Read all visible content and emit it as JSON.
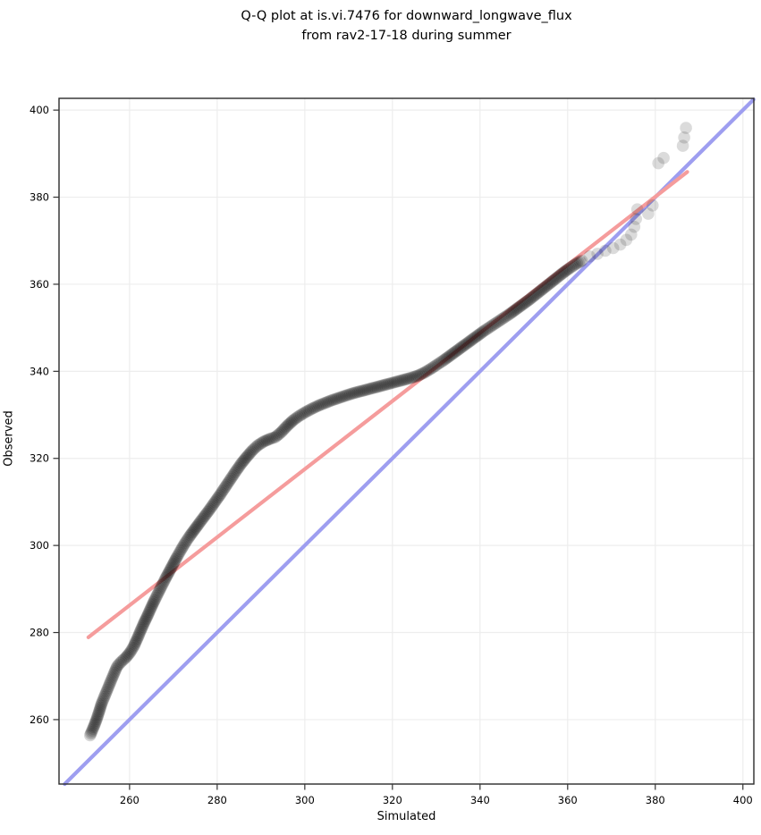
{
  "title": {
    "line1": "Q-Q plot at is.vi.7476 for downward_longwave_flux",
    "line2": "from rav2-17-18 during summer"
  },
  "chart_data": {
    "type": "scatter",
    "title": "Q-Q plot at is.vi.7476 for downward_longwave_flux from rav2-17-18 during summer",
    "xlabel": "Simulated",
    "ylabel": "Observed",
    "xlim": [
      243.9,
      402.5
    ],
    "ylim": [
      245.2,
      402.7
    ],
    "xticks": [
      260,
      280,
      300,
      320,
      340,
      360,
      380,
      400
    ],
    "yticks": [
      260,
      280,
      300,
      320,
      340,
      360,
      380,
      400
    ],
    "grid": true,
    "grid_color": "#ededed",
    "background_color": "#ffffff",
    "border_color": "#2b2b2b",
    "legend": "none",
    "lines": [
      {
        "name": "identity-line",
        "color": "#9e9ef0",
        "x1": 245.2,
        "y1": 245.2,
        "x2": 402.45,
        "y2": 402.45
      },
      {
        "name": "fit-line",
        "color": "#f59c9c",
        "x1": 250.6,
        "y1": 278.9,
        "x2": 387.3,
        "y2": 385.8
      }
    ],
    "points_color": "#000000",
    "qq_curve_points": [
      [
        251.0,
        256.4
      ],
      [
        251.8,
        258.3
      ],
      [
        252.5,
        260.1
      ],
      [
        253.1,
        262.0
      ],
      [
        253.7,
        263.9
      ],
      [
        254.4,
        265.6
      ],
      [
        255.1,
        267.3
      ],
      [
        255.8,
        269.0
      ],
      [
        256.5,
        270.7
      ],
      [
        257.2,
        272.3
      ],
      [
        258.1,
        273.3
      ],
      [
        259.1,
        274.2
      ],
      [
        260.1,
        275.4
      ],
      [
        261.0,
        276.9
      ],
      [
        261.8,
        278.7
      ],
      [
        262.6,
        280.6
      ],
      [
        263.4,
        282.4
      ],
      [
        264.2,
        284.1
      ],
      [
        265.0,
        285.9
      ],
      [
        265.8,
        287.6
      ],
      [
        266.6,
        289.2
      ],
      [
        267.4,
        290.8
      ],
      [
        268.2,
        292.4
      ],
      [
        269.1,
        294.1
      ],
      [
        270.0,
        295.8
      ],
      [
        270.9,
        297.5
      ],
      [
        271.8,
        299.1
      ],
      [
        272.7,
        300.6
      ],
      [
        273.7,
        302.1
      ],
      [
        274.8,
        303.6
      ],
      [
        275.9,
        305.1
      ],
      [
        277.1,
        306.7
      ],
      [
        278.3,
        308.3
      ],
      [
        279.5,
        310.0
      ],
      [
        280.7,
        311.7
      ],
      [
        281.9,
        313.5
      ],
      [
        283.1,
        315.3
      ],
      [
        284.3,
        317.1
      ],
      [
        285.5,
        318.8
      ],
      [
        286.7,
        320.3
      ],
      [
        288.0,
        321.8
      ],
      [
        289.3,
        323.0
      ],
      [
        290.7,
        323.9
      ],
      [
        292.1,
        324.5
      ],
      [
        293.3,
        324.9
      ],
      [
        294.6,
        326.0
      ],
      [
        296.0,
        327.5
      ],
      [
        297.4,
        328.8
      ],
      [
        298.8,
        329.8
      ],
      [
        300.3,
        330.7
      ],
      [
        301.8,
        331.5
      ],
      [
        303.3,
        332.2
      ],
      [
        304.8,
        332.8
      ],
      [
        306.3,
        333.4
      ],
      [
        307.8,
        333.9
      ],
      [
        309.3,
        334.4
      ],
      [
        310.8,
        334.9
      ],
      [
        312.3,
        335.3
      ],
      [
        313.8,
        335.7
      ],
      [
        315.3,
        336.1
      ],
      [
        316.8,
        336.5
      ],
      [
        318.3,
        336.9
      ],
      [
        319.8,
        337.3
      ],
      [
        321.3,
        337.7
      ],
      [
        322.8,
        338.1
      ],
      [
        324.3,
        338.5
      ],
      [
        325.8,
        339.0
      ],
      [
        327.3,
        339.7
      ],
      [
        328.8,
        340.6
      ],
      [
        330.3,
        341.6
      ],
      [
        331.8,
        342.6
      ],
      [
        333.3,
        343.7
      ],
      [
        334.8,
        344.8
      ],
      [
        336.3,
        345.9
      ],
      [
        337.8,
        347.0
      ],
      [
        339.3,
        348.1
      ],
      [
        340.8,
        349.2
      ],
      [
        342.3,
        350.2
      ],
      [
        343.8,
        351.2
      ],
      [
        345.3,
        352.2
      ],
      [
        346.8,
        353.2
      ],
      [
        348.3,
        354.3
      ],
      [
        349.8,
        355.4
      ],
      [
        351.3,
        356.5
      ],
      [
        352.8,
        357.7
      ],
      [
        354.3,
        358.9
      ],
      [
        355.8,
        360.1
      ],
      [
        357.3,
        361.3
      ],
      [
        358.8,
        362.5
      ],
      [
        360.3,
        363.6
      ],
      [
        361.8,
        364.6
      ],
      [
        363.2,
        365.4
      ]
    ],
    "qq_outlier_points": [
      [
        365.0,
        366.4
      ],
      [
        366.8,
        367.0
      ],
      [
        368.6,
        367.7
      ],
      [
        370.4,
        368.3
      ],
      [
        372.0,
        369.1
      ],
      [
        373.4,
        370.2
      ],
      [
        374.5,
        371.4
      ],
      [
        375.2,
        373.2
      ],
      [
        375.6,
        375.0
      ],
      [
        375.9,
        377.2
      ],
      [
        378.4,
        376.2
      ],
      [
        379.4,
        378.1
      ],
      [
        380.7,
        387.8
      ],
      [
        381.9,
        389.0
      ],
      [
        386.3,
        391.8
      ],
      [
        386.6,
        393.7
      ],
      [
        387.0,
        395.9
      ]
    ]
  }
}
